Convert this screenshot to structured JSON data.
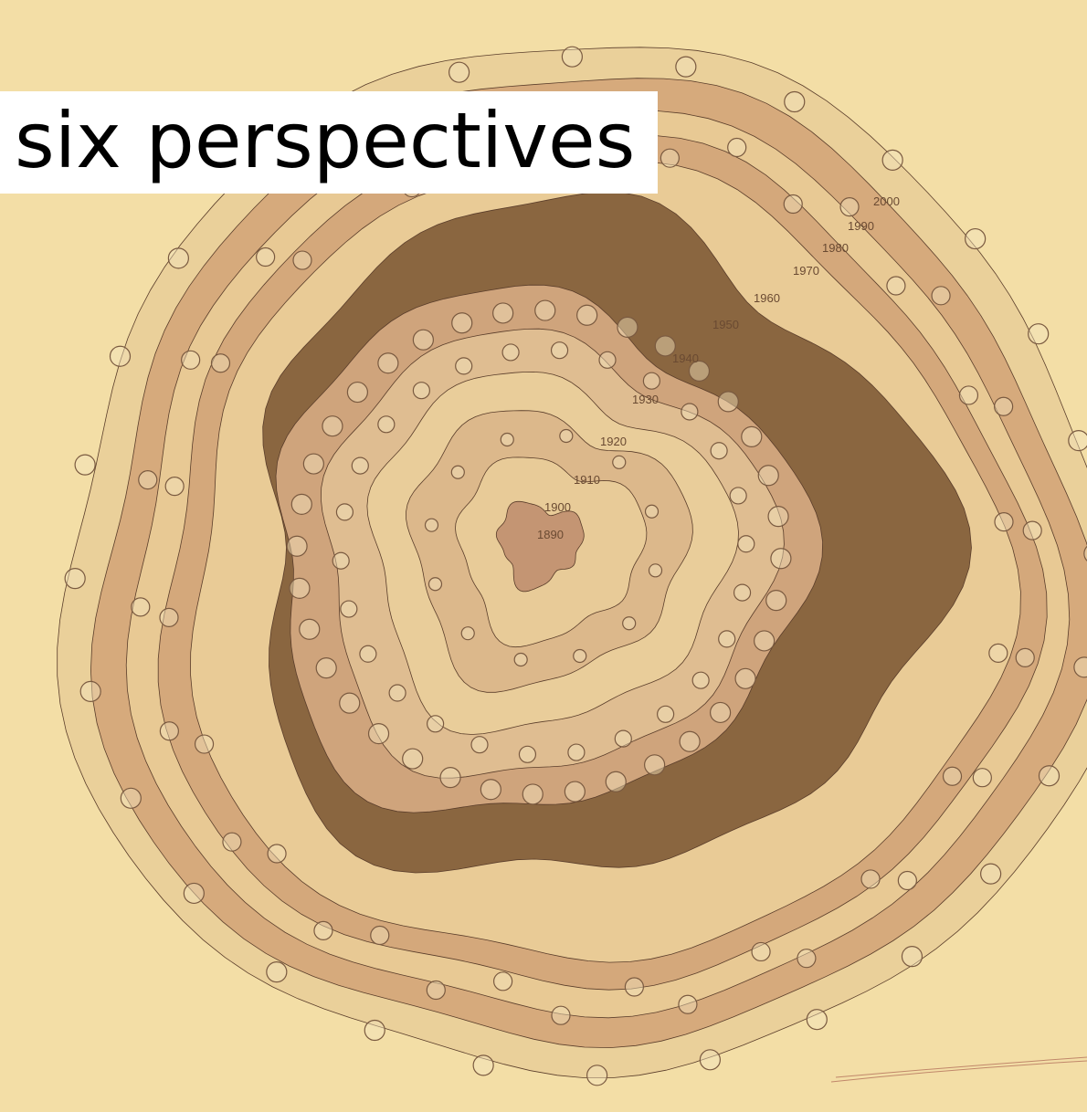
{
  "header": {
    "title": "six perspectives"
  },
  "ring_labels": [
    "1890",
    "1900",
    "1910",
    "1920",
    "1930",
    "1940",
    "1950",
    "1960",
    "1970",
    "1980",
    "1990",
    "2000"
  ]
}
